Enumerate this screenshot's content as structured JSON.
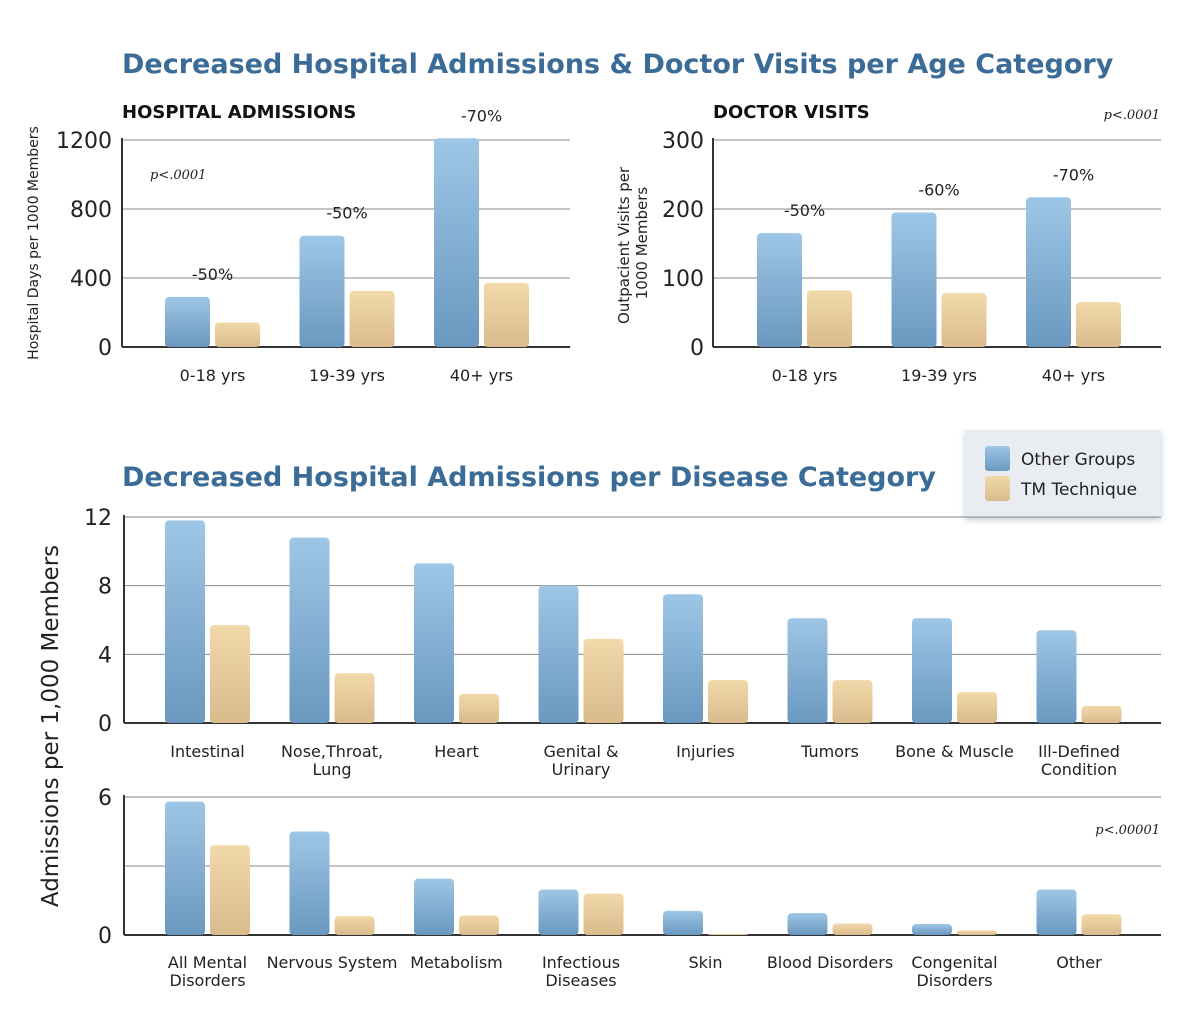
{
  "titles": {
    "age": "Decreased Hospital Admissions & Doctor Visits per Age Category",
    "disease": "Decreased Hospital Admissions per Disease Category"
  },
  "colors": {
    "other_top": "#9ec6e6",
    "other_bottom": "#6a98bf",
    "tm_top": "#f2d9aa",
    "tm_bottom": "#d9bb8c",
    "title": "#3a6c97",
    "grid": "#888888",
    "axis": "#333333"
  },
  "legend": {
    "position": "top-right",
    "items": [
      {
        "label": "Other Groups",
        "color": "#80acd2"
      },
      {
        "label": "TM Technique",
        "color": "#e6cb98"
      }
    ]
  },
  "chart_data": [
    {
      "id": "hospital",
      "type": "bar",
      "title": "HOSPITAL ADMISSIONS",
      "ylabel": "Hospital Days per 1000 Members",
      "ylim": [
        0,
        1200
      ],
      "yticks": [
        0,
        400,
        800,
        1200
      ],
      "pvalue": "p<.0001",
      "categories": [
        "0-18 yrs",
        "19-39 yrs",
        "40+ yrs"
      ],
      "series": [
        {
          "name": "Other Groups",
          "values": [
            290,
            645,
            1210
          ]
        },
        {
          "name": "TM Technique",
          "values": [
            142,
            325,
            372
          ]
        }
      ],
      "annotations": [
        "-50%",
        "-50%",
        "-70%"
      ]
    },
    {
      "id": "doctor",
      "type": "bar",
      "title": "DOCTOR VISITS",
      "ylabel": "Outpacient Visits per 1000 Members",
      "ylim": [
        0,
        300
      ],
      "yticks": [
        0,
        100,
        200,
        300
      ],
      "pvalue": "p<.0001",
      "categories": [
        "0-18 yrs",
        "19-39 yrs",
        "40+ yrs"
      ],
      "series": [
        {
          "name": "Other Groups",
          "values": [
            165,
            195,
            217
          ]
        },
        {
          "name": "TM Technique",
          "values": [
            82,
            78,
            65
          ]
        }
      ],
      "annotations": [
        "-50%",
        "-60%",
        "-70%"
      ]
    },
    {
      "id": "disease1",
      "type": "bar",
      "ylim": [
        0,
        12
      ],
      "yticks": [
        0,
        4,
        8,
        12
      ],
      "categories": [
        "Intestinal",
        "Nose,Throat, Lung",
        "Heart",
        "Genital & Urinary",
        "Injuries",
        "Tumors",
        "Bone & Muscle",
        "Ill-Defined Condition"
      ],
      "series": [
        {
          "name": "Other Groups",
          "values": [
            11.8,
            10.8,
            9.3,
            8.0,
            7.5,
            6.1,
            6.1,
            5.4
          ]
        },
        {
          "name": "TM Technique",
          "values": [
            5.7,
            2.9,
            1.7,
            4.9,
            2.5,
            2.5,
            1.8,
            1.0
          ]
        }
      ]
    },
    {
      "id": "disease2",
      "type": "bar",
      "ylabel": "Admissions per 1,000 Members",
      "ylim": [
        0,
        6
      ],
      "yticks": [
        0,
        6
      ],
      "gridlines": [
        0,
        3,
        6
      ],
      "pvalue": "p<.00001",
      "categories": [
        "All Mental Disorders",
        "Nervous System",
        "Metabolism",
        "Infectious Diseases",
        "Skin",
        "Blood Disorders",
        "Congenital Disorders",
        "Other"
      ],
      "series": [
        {
          "name": "Other Groups",
          "values": [
            5.8,
            4.5,
            2.45,
            1.98,
            1.05,
            0.95,
            0.48,
            1.98
          ]
        },
        {
          "name": "TM Technique",
          "values": [
            3.9,
            0.82,
            0.85,
            1.8,
            0.05,
            0.5,
            0.2,
            0.9
          ]
        }
      ]
    }
  ]
}
